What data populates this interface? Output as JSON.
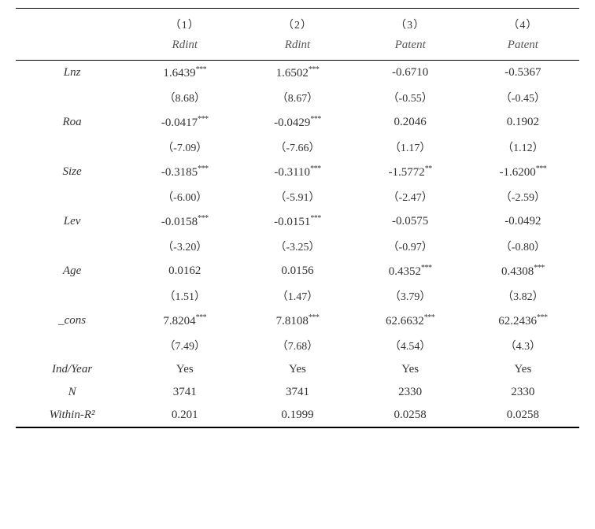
{
  "header": {
    "numbers": [
      "（1）",
      "（2）",
      "（3）",
      "（4）"
    ],
    "vars": [
      "Rdint",
      "Rdint",
      "Patent",
      "Patent"
    ]
  },
  "rows": [
    {
      "label": "Lnz",
      "values": [
        {
          "coef": "1.6439",
          "stars": "***",
          "tstat": "（8.68）"
        },
        {
          "coef": "1.6502",
          "stars": "***",
          "tstat": "（8.67）"
        },
        {
          "coef": "-0.6710",
          "stars": "",
          "tstat": "（-0.55）"
        },
        {
          "coef": "-0.5367",
          "stars": "",
          "tstat": "（-0.45）"
        }
      ]
    },
    {
      "label": "Roa",
      "values": [
        {
          "coef": "-0.0417",
          "stars": "***",
          "tstat": "（-7.09）"
        },
        {
          "coef": "-0.0429",
          "stars": "***",
          "tstat": "（-7.66）"
        },
        {
          "coef": "0.2046",
          "stars": "",
          "tstat": "（1.17）"
        },
        {
          "coef": "0.1902",
          "stars": "",
          "tstat": "（1.12）"
        }
      ]
    },
    {
      "label": "Size",
      "values": [
        {
          "coef": "-0.3185",
          "stars": "***",
          "tstat": "（-6.00）"
        },
        {
          "coef": "-0.3110",
          "stars": "***",
          "tstat": "（-5.91）"
        },
        {
          "coef": "-1.5772",
          "stars": "**",
          "tstat": "（-2.47）"
        },
        {
          "coef": "-1.6200",
          "stars": "***",
          "tstat": "（-2.59）"
        }
      ]
    },
    {
      "label": "Lev",
      "values": [
        {
          "coef": "-0.0158",
          "stars": "***",
          "tstat": "（-3.20）"
        },
        {
          "coef": "-0.0151",
          "stars": "***",
          "tstat": "（-3.25）"
        },
        {
          "coef": "-0.0575",
          "stars": "",
          "tstat": "（-0.97）"
        },
        {
          "coef": "-0.0492",
          "stars": "",
          "tstat": "（-0.80）"
        }
      ]
    },
    {
      "label": "Age",
      "values": [
        {
          "coef": "0.0162",
          "stars": "",
          "tstat": "（1.51）"
        },
        {
          "coef": "0.0156",
          "stars": "",
          "tstat": "（1.47）"
        },
        {
          "coef": "0.4352",
          "stars": "***",
          "tstat": "（3.79）"
        },
        {
          "coef": "0.4308",
          "stars": "***",
          "tstat": "（3.82）"
        }
      ]
    },
    {
      "label": "_cons",
      "values": [
        {
          "coef": "7.8204",
          "stars": "***",
          "tstat": "（7.49）"
        },
        {
          "coef": "7.8108",
          "stars": "***",
          "tstat": "（7.68）"
        },
        {
          "coef": "62.6632",
          "stars": "***",
          "tstat": "（4.54）"
        },
        {
          "coef": "62.2436",
          "stars": "***",
          "tstat": "（4.3）"
        }
      ]
    }
  ],
  "footer": [
    {
      "label": "Ind/Year",
      "values": [
        "Yes",
        "Yes",
        "Yes",
        "Yes"
      ]
    },
    {
      "label": "N",
      "values": [
        "3741",
        "3741",
        "2330",
        "2330"
      ]
    },
    {
      "label": "Within-R²",
      "values": [
        "0.201",
        "0.1999",
        "0.0258",
        "0.0258"
      ]
    }
  ],
  "styles": {
    "background_color": "#ffffff",
    "border_color": "#000000",
    "text_color": "#333333",
    "header_var_color": "#555555",
    "font_family": "Times New Roman",
    "base_fontsize": 15,
    "tstat_fontsize": 14,
    "star_fontsize": 10
  }
}
